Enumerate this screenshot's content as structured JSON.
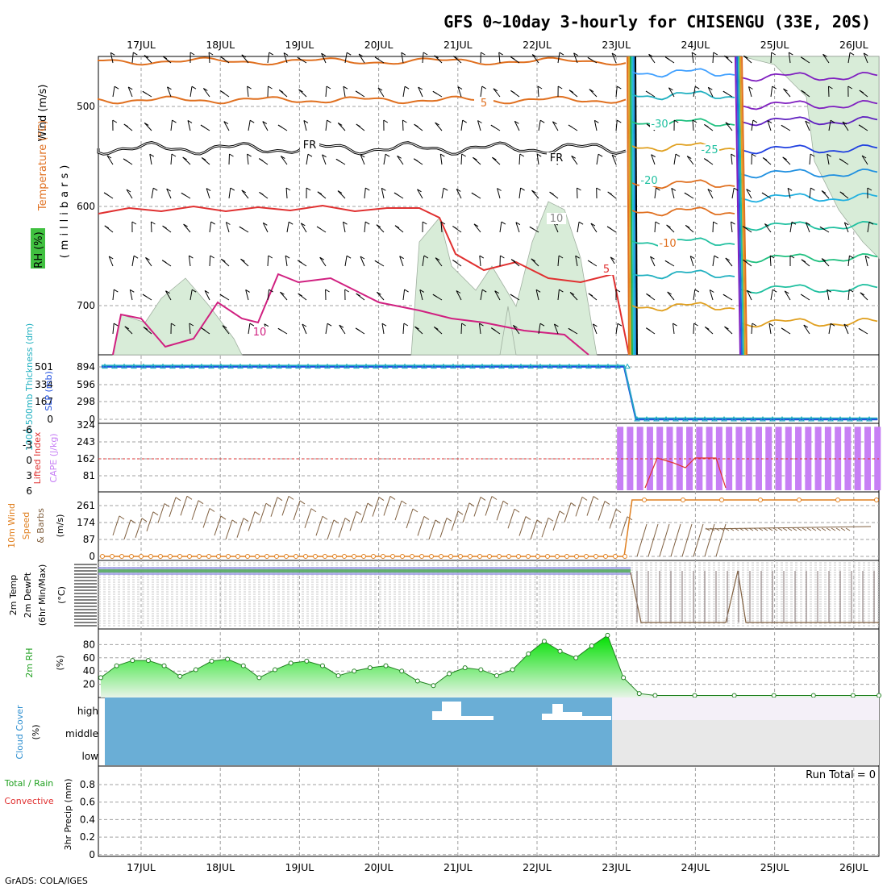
{
  "title": "GFS 0~10day 3-hourly for CHISENGU (33E, 20S)",
  "footer": "GrADS: COLA/IGES",
  "run_total": "Run Total = 0",
  "dates": [
    "17JUL",
    "18JUL",
    "19JUL",
    "20JUL",
    "21JUL",
    "22JUL",
    "23JUL",
    "24JUL",
    "25JUL",
    "26JUL"
  ],
  "colors": {
    "grid": "#a0a0a0",
    "rh_shade": "#d8ecd8",
    "cape": "#c77ff5",
    "lifted": "#e03030",
    "slp": "#2050e0",
    "thick": "#20b0c0",
    "wind10": "#e08020",
    "rh2m": "#20c020",
    "cloud": "#6aaed6"
  },
  "panels": {
    "upper_air": {
      "labels": {
        "wind": "Wind (m/s)",
        "temp": "Temperature (°C)",
        "rh": "RH (%)",
        "pressure": "(millibars)"
      },
      "yticks": [
        "500",
        "600",
        "700"
      ],
      "contour_labels": [
        "5",
        "FR",
        "FR",
        "10",
        "5",
        "10",
        "-30",
        "-25",
        "-20",
        "-10",
        "5"
      ]
    },
    "slp_thick": {
      "labels": {
        "thick": "1000-500mb Thickness (dm)",
        "slp": "SLP (mb)"
      },
      "left_ticks": [
        "501",
        "334",
        "167",
        "0"
      ],
      "right_ticks": [
        "894",
        "596",
        "298",
        "0"
      ]
    },
    "cape_li": {
      "labels": {
        "li": "Lifted Index",
        "cape": "CAPE (J/kg)"
      },
      "left_ticks": [
        "-6",
        "-3",
        "0",
        "3",
        "6"
      ],
      "right_ticks": [
        "324",
        "243",
        "162",
        "81"
      ]
    },
    "wind10m": {
      "labels": {
        "a": "10m Wind",
        "b": "Speed",
        "c": "& Barbs",
        "unit": "(m/s)"
      },
      "ticks": [
        "261",
        "174",
        "87",
        "0"
      ]
    },
    "temp2m": {
      "labels": {
        "a": "2m Temp",
        "b": "2m DewPt",
        "c": "(6hr Min/Max)",
        "unit": "(°C)"
      }
    },
    "rh2m": {
      "labels": {
        "a": "2m RH",
        "unit": "(%)"
      },
      "ticks": [
        "80",
        "60",
        "40",
        "20"
      ]
    },
    "cloud": {
      "labels": {
        "a": "Cloud Cover",
        "unit": "(%)"
      },
      "levels": [
        "high",
        "middle",
        "low"
      ]
    },
    "precip": {
      "labels": {
        "a": "Total / Rain",
        "b": "Convective",
        "c": "3hr Precip (mm)"
      },
      "ticks": [
        "0.8",
        "0.6",
        "0.4",
        "0.2",
        "0"
      ]
    }
  },
  "chart_data": {
    "type": "line",
    "time_axis_start": "17JUL",
    "pressure_ticks_mb": [
      500,
      600,
      700
    ],
    "rh2m": {
      "unit": "%",
      "ylim": [
        0,
        100
      ],
      "days": [
        0,
        0.2,
        0.4,
        0.6,
        0.8,
        1,
        1.2,
        1.4,
        1.6,
        1.8,
        2,
        2.2,
        2.4,
        2.6,
        2.8,
        3,
        3.2,
        3.4,
        3.6,
        3.8,
        4,
        4.2,
        4.4,
        4.6,
        4.8,
        5,
        5.2,
        5.4,
        5.6,
        5.8,
        6,
        6.2,
        6.4,
        6.6,
        6.8,
        7,
        7.5,
        8,
        8.5,
        9,
        9.5,
        10
      ],
      "values": [
        30,
        48,
        56,
        56,
        48,
        32,
        42,
        55,
        58,
        48,
        30,
        42,
        52,
        55,
        48,
        33,
        40,
        45,
        48,
        40,
        25,
        18,
        36,
        45,
        42,
        33,
        42,
        66,
        85,
        70,
        60,
        78,
        94,
        30,
        6,
        3,
        3,
        3,
        3,
        3,
        3,
        3
      ]
    },
    "slp_mb": {
      "days": [
        -0.5,
        6.1,
        6.25,
        9.3
      ],
      "values": [
        900,
        900,
        0,
        0
      ]
    },
    "cape_jkg": {
      "days_range": [
        6.05,
        9.3
      ],
      "bar_value": 315
    },
    "wind10m_speed": {
      "days": [
        -0.5,
        6.1,
        6.2,
        9.3
      ],
      "values": [
        0,
        0,
        261,
        261
      ]
    },
    "cloud_high_pct": {
      "before_23JUL": 100,
      "after_23JUL": 0
    }
  }
}
